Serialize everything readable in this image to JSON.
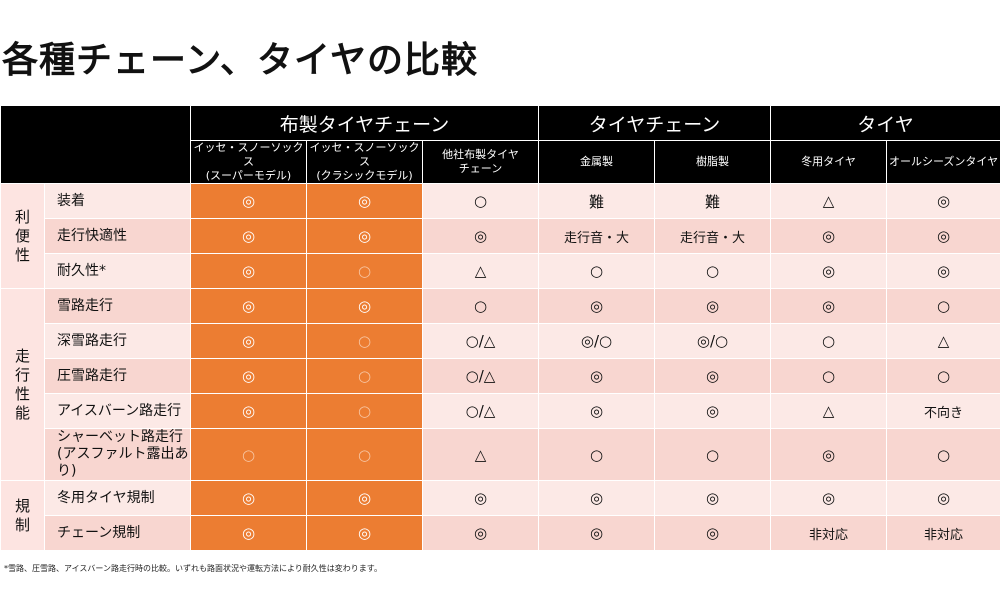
{
  "title": "各種チェーン、タイヤの比較",
  "groups": [
    "布製タイヤチェーン",
    "タイヤチェーン",
    "タイヤ"
  ],
  "columns": [
    "イッセ・スノーソックス\n(スーパーモデル)",
    "イッセ・スノーソックス\n(クラシックモデル)",
    "他社布製タイヤ\nチェーン",
    "金属製",
    "樹脂製",
    "冬用タイヤ",
    "オールシーズンタイヤ"
  ],
  "categories": [
    "利便性",
    "走行性能",
    "規制"
  ],
  "rows": [
    {
      "label": "装着",
      "values": [
        "◎",
        "◎",
        "○",
        "難",
        "難",
        "△",
        "◎"
      ]
    },
    {
      "label": "走行快適性",
      "values": [
        "◎",
        "◎",
        "◎",
        "走行音・大",
        "走行音・大",
        "◎",
        "◎"
      ]
    },
    {
      "label": "耐久性*",
      "values": [
        "◎",
        "○",
        "△",
        "○",
        "○",
        "◎",
        "◎"
      ]
    },
    {
      "label": "雪路走行",
      "values": [
        "◎",
        "◎",
        "○",
        "◎",
        "◎",
        "◎",
        "○"
      ]
    },
    {
      "label": "深雪路走行",
      "values": [
        "◎",
        "○",
        "○/△",
        "◎/○",
        "◎/○",
        "○",
        "△"
      ]
    },
    {
      "label": "圧雪路走行",
      "values": [
        "◎",
        "○",
        "○/△",
        "◎",
        "◎",
        "○",
        "○"
      ]
    },
    {
      "label": "アイスバーン路走行",
      "values": [
        "◎",
        "○",
        "○/△",
        "◎",
        "◎",
        "△",
        "不向き"
      ]
    },
    {
      "label": "シャーベット路走行\n(アスファルト露出あり)",
      "values": [
        "○",
        "○",
        "△",
        "○",
        "○",
        "◎",
        "○"
      ]
    },
    {
      "label": "冬用タイヤ規制",
      "values": [
        "◎",
        "◎",
        "◎",
        "◎",
        "◎",
        "◎",
        "◎"
      ]
    },
    {
      "label": "チェーン規制",
      "values": [
        "◎",
        "◎",
        "◎",
        "◎",
        "◎",
        "非対応",
        "非対応"
      ]
    }
  ],
  "footnote": "*雪路、圧雪路、アイスバーン路走行時の比較。いずれも路面状況や運転方法により耐久性は変わります。"
}
